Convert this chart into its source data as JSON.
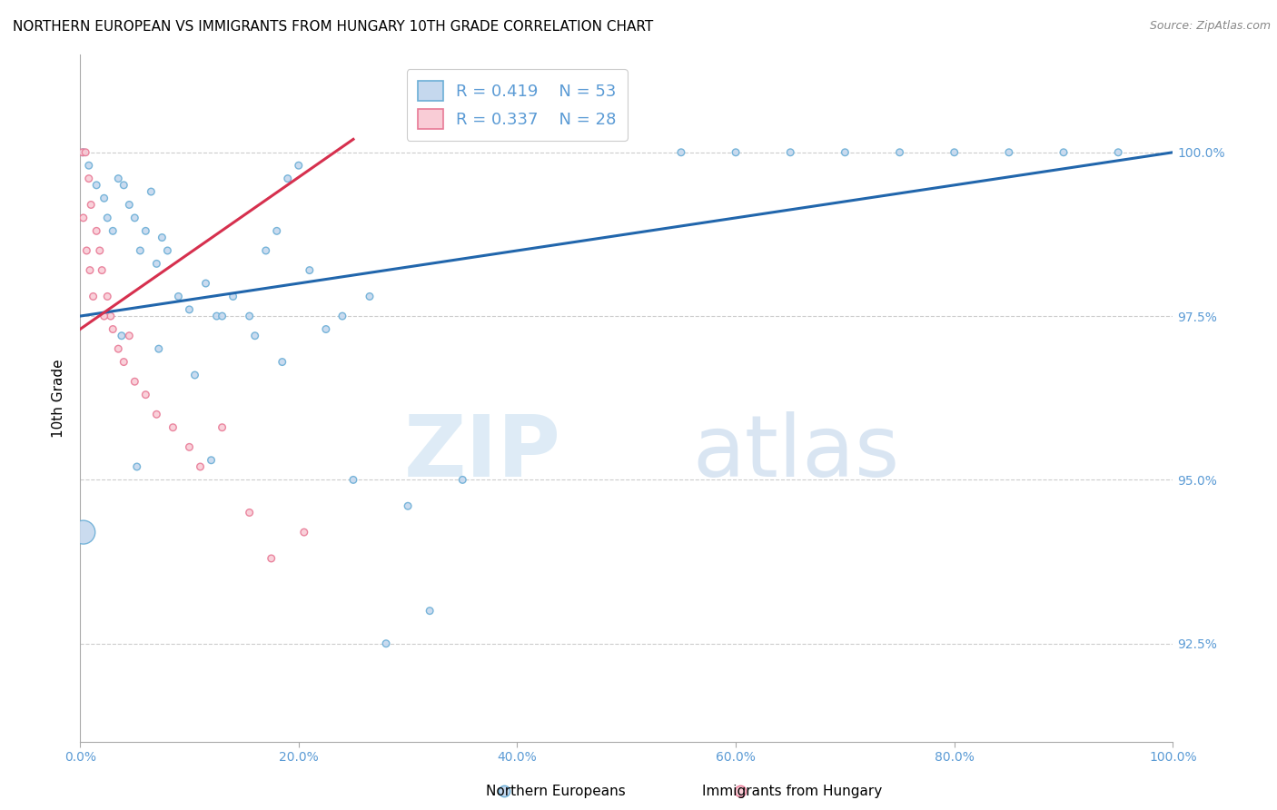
{
  "title": "NORTHERN EUROPEAN VS IMMIGRANTS FROM HUNGARY 10TH GRADE CORRELATION CHART",
  "source": "Source: ZipAtlas.com",
  "ylabel": "10th Grade",
  "x_min": 0.0,
  "x_max": 100.0,
  "y_min": 91.0,
  "y_max": 101.5,
  "legend_box": {
    "blue_r": "R = 0.419",
    "blue_n": "N = 53",
    "pink_r": "R = 0.337",
    "pink_n": "N = 28"
  },
  "blue_scatter": {
    "x": [
      0.3,
      0.8,
      1.5,
      2.2,
      2.5,
      3.0,
      3.5,
      4.0,
      4.5,
      5.0,
      5.5,
      6.0,
      6.5,
      7.0,
      7.5,
      8.0,
      9.0,
      10.0,
      11.5,
      12.5,
      13.0,
      14.0,
      15.5,
      17.0,
      18.0,
      19.0,
      20.0,
      21.0,
      22.5,
      24.0,
      26.5,
      0.3,
      5.2,
      10.5,
      18.5,
      25.0,
      30.0,
      35.0,
      55.0,
      60.0,
      65.0,
      70.0,
      75.0,
      80.0,
      85.0,
      90.0,
      95.0,
      28.0,
      32.0,
      12.0,
      16.0,
      7.2,
      3.8
    ],
    "y": [
      100.0,
      99.8,
      99.5,
      99.3,
      99.0,
      98.8,
      99.6,
      99.5,
      99.2,
      99.0,
      98.5,
      98.8,
      99.4,
      98.3,
      98.7,
      98.5,
      97.8,
      97.6,
      98.0,
      97.5,
      97.5,
      97.8,
      97.5,
      98.5,
      98.8,
      99.6,
      99.8,
      98.2,
      97.3,
      97.5,
      97.8,
      94.2,
      95.2,
      96.6,
      96.8,
      95.0,
      94.6,
      95.0,
      100.0,
      100.0,
      100.0,
      100.0,
      100.0,
      100.0,
      100.0,
      100.0,
      100.0,
      92.5,
      93.0,
      95.3,
      97.2,
      97.0,
      97.2
    ],
    "sizes": [
      30,
      30,
      30,
      30,
      30,
      30,
      30,
      30,
      30,
      30,
      30,
      30,
      30,
      30,
      30,
      30,
      30,
      30,
      30,
      30,
      30,
      30,
      30,
      30,
      30,
      30,
      30,
      30,
      30,
      30,
      30,
      350,
      30,
      30,
      30,
      30,
      30,
      30,
      30,
      30,
      30,
      30,
      30,
      30,
      30,
      30,
      30,
      30,
      30,
      30,
      30,
      30,
      30
    ]
  },
  "pink_scatter": {
    "x": [
      0.2,
      0.5,
      0.8,
      1.0,
      1.5,
      1.8,
      2.0,
      2.5,
      2.8,
      3.0,
      3.5,
      4.0,
      4.5,
      5.0,
      6.0,
      7.0,
      8.5,
      10.0,
      11.0,
      13.0,
      15.5,
      17.5,
      20.5,
      0.3,
      0.6,
      0.9,
      1.2,
      2.2
    ],
    "y": [
      100.0,
      100.0,
      99.6,
      99.2,
      98.8,
      98.5,
      98.2,
      97.8,
      97.5,
      97.3,
      97.0,
      96.8,
      97.2,
      96.5,
      96.3,
      96.0,
      95.8,
      95.5,
      95.2,
      95.8,
      94.5,
      93.8,
      94.2,
      99.0,
      98.5,
      98.2,
      97.8,
      97.5
    ],
    "sizes": [
      30,
      30,
      30,
      30,
      30,
      30,
      30,
      30,
      30,
      30,
      30,
      30,
      30,
      30,
      30,
      30,
      30,
      30,
      30,
      30,
      30,
      30,
      30,
      30,
      30,
      30,
      30,
      30
    ]
  },
  "blue_line": {
    "x0": 0.0,
    "y0": 97.5,
    "x1": 100.0,
    "y1": 100.0
  },
  "pink_line": {
    "x0": 0.0,
    "y0": 97.3,
    "x1": 25.0,
    "y1": 100.2
  },
  "blue_color": "#c5d8ee",
  "blue_edge_color": "#6baed6",
  "pink_color": "#f9ccd6",
  "pink_edge_color": "#e87a96",
  "blue_line_color": "#2166ac",
  "pink_line_color": "#d6304e",
  "watermark_zip": "ZIP",
  "watermark_atlas": "atlas",
  "background_color": "#ffffff",
  "grid_color": "#cccccc",
  "title_fontsize": 11,
  "tick_label_color": "#5b9bd5",
  "ytick_vals": [
    92.5,
    95.0,
    97.5,
    100.0
  ],
  "ytick_labels": [
    "92.5%",
    "95.0%",
    "97.5%",
    "100.0%"
  ],
  "xtick_vals": [
    0,
    20,
    40,
    60,
    80,
    100
  ],
  "xtick_labels": [
    "0.0%",
    "20.0%",
    "40.0%",
    "60.0%",
    "80.0%",
    "100.0%"
  ]
}
